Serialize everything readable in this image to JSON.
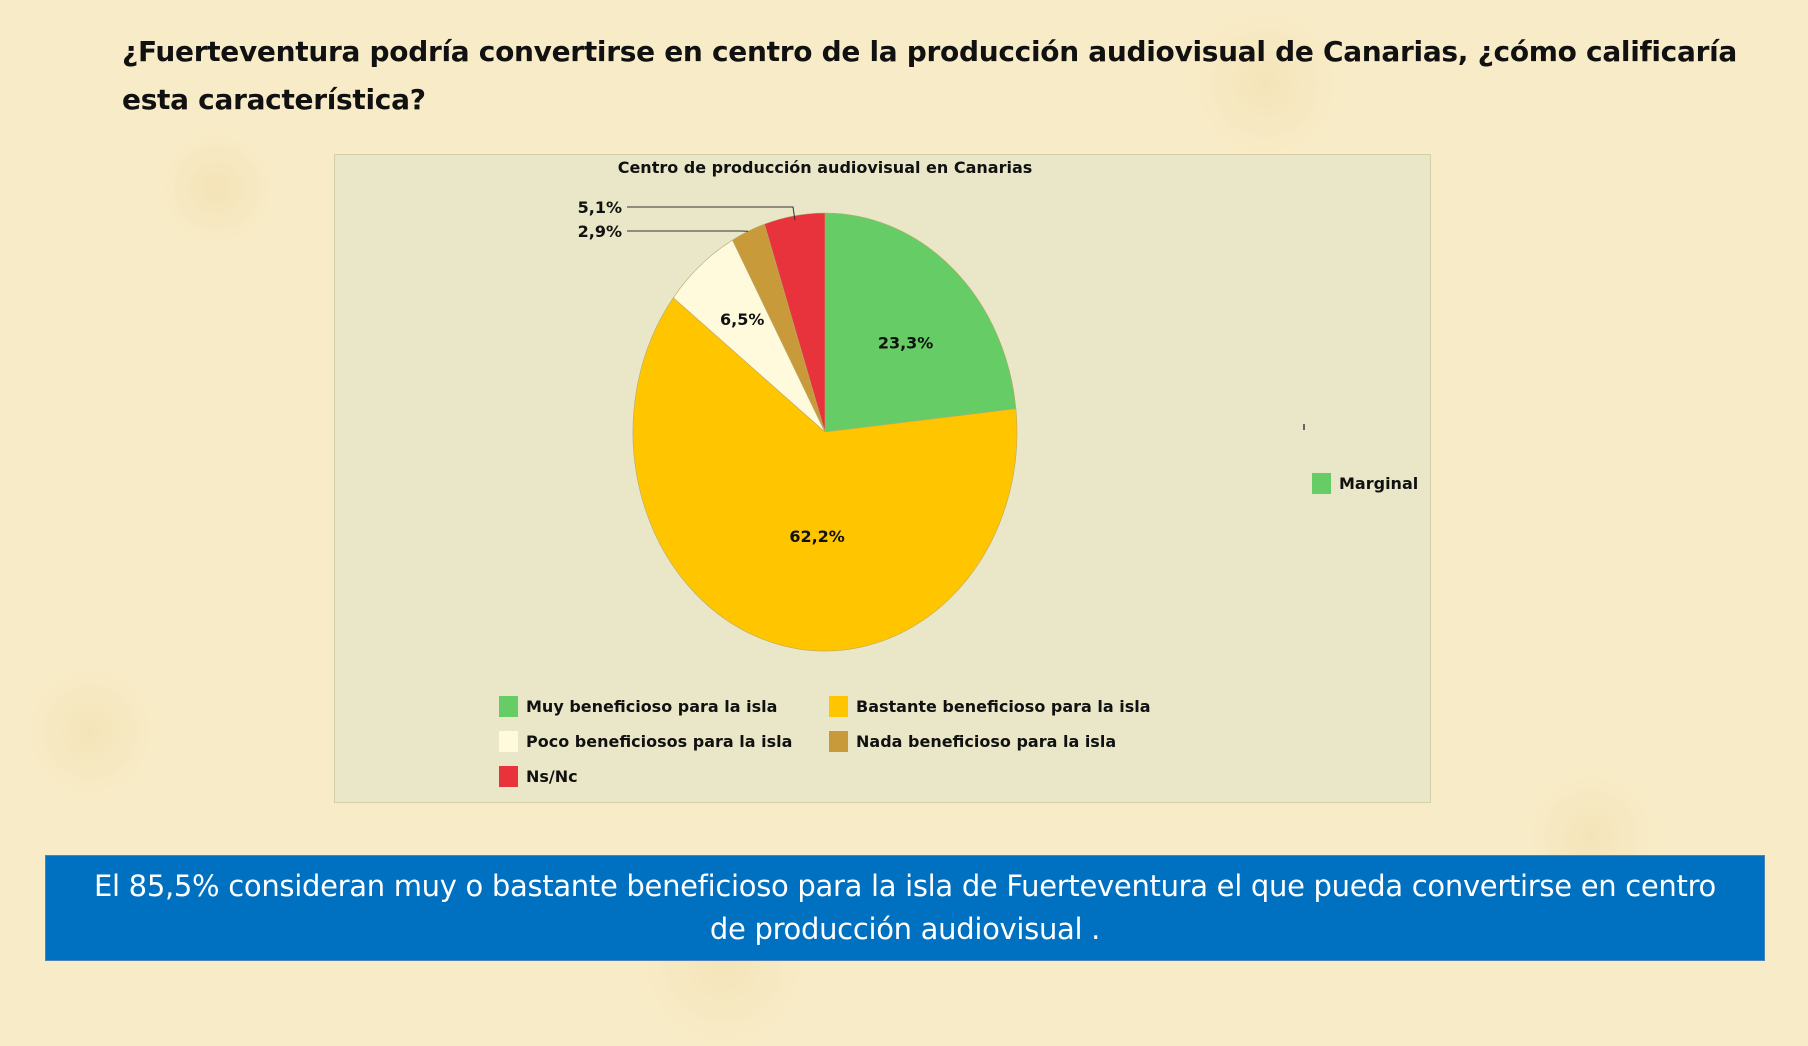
{
  "question": "¿Fuerteventura podría convertirse en centro de la producción audiovisual de Canarias, ¿cómo calificaría esta característica?",
  "chart_data": {
    "type": "pie",
    "title": "Centro de producción audiovisual en Canarias",
    "categories": [
      "Muy beneficioso para la isla",
      "Bastante beneficioso para la isla",
      "Poco beneficiosos para la isla",
      "Nada beneficioso para la isla",
      "Ns/Nc"
    ],
    "values": [
      23.3,
      62.2,
      6.5,
      2.9,
      5.1
    ],
    "data_labels": [
      "23,3%",
      "62,2%",
      "6,5%",
      "2,9%",
      "5,1%"
    ],
    "colors": [
      "#66cc66",
      "#ffc600",
      "#fffadc",
      "#c89a3a",
      "#e8323c"
    ],
    "legend_position": "bottom",
    "side_legend": {
      "label": "Marginal",
      "color": "#66cc66"
    }
  },
  "legend": {
    "items": [
      {
        "label": "Muy beneficioso para la isla",
        "color": "#66cc66"
      },
      {
        "label": "Bastante beneficioso para la isla",
        "color": "#ffc600"
      },
      {
        "label": "Poco beneficiosos para la isla",
        "color": "#fffadc"
      },
      {
        "label": "Nada beneficioso para la isla",
        "color": "#c89a3a"
      },
      {
        "label": "Ns/Nc",
        "color": "#e8323c"
      }
    ],
    "side_label": "Marginal"
  },
  "conclusion": "El 85,5% consideran muy o bastante beneficioso para la isla de Fuerteventura el que pueda convertirse en centro de producción audiovisual ."
}
